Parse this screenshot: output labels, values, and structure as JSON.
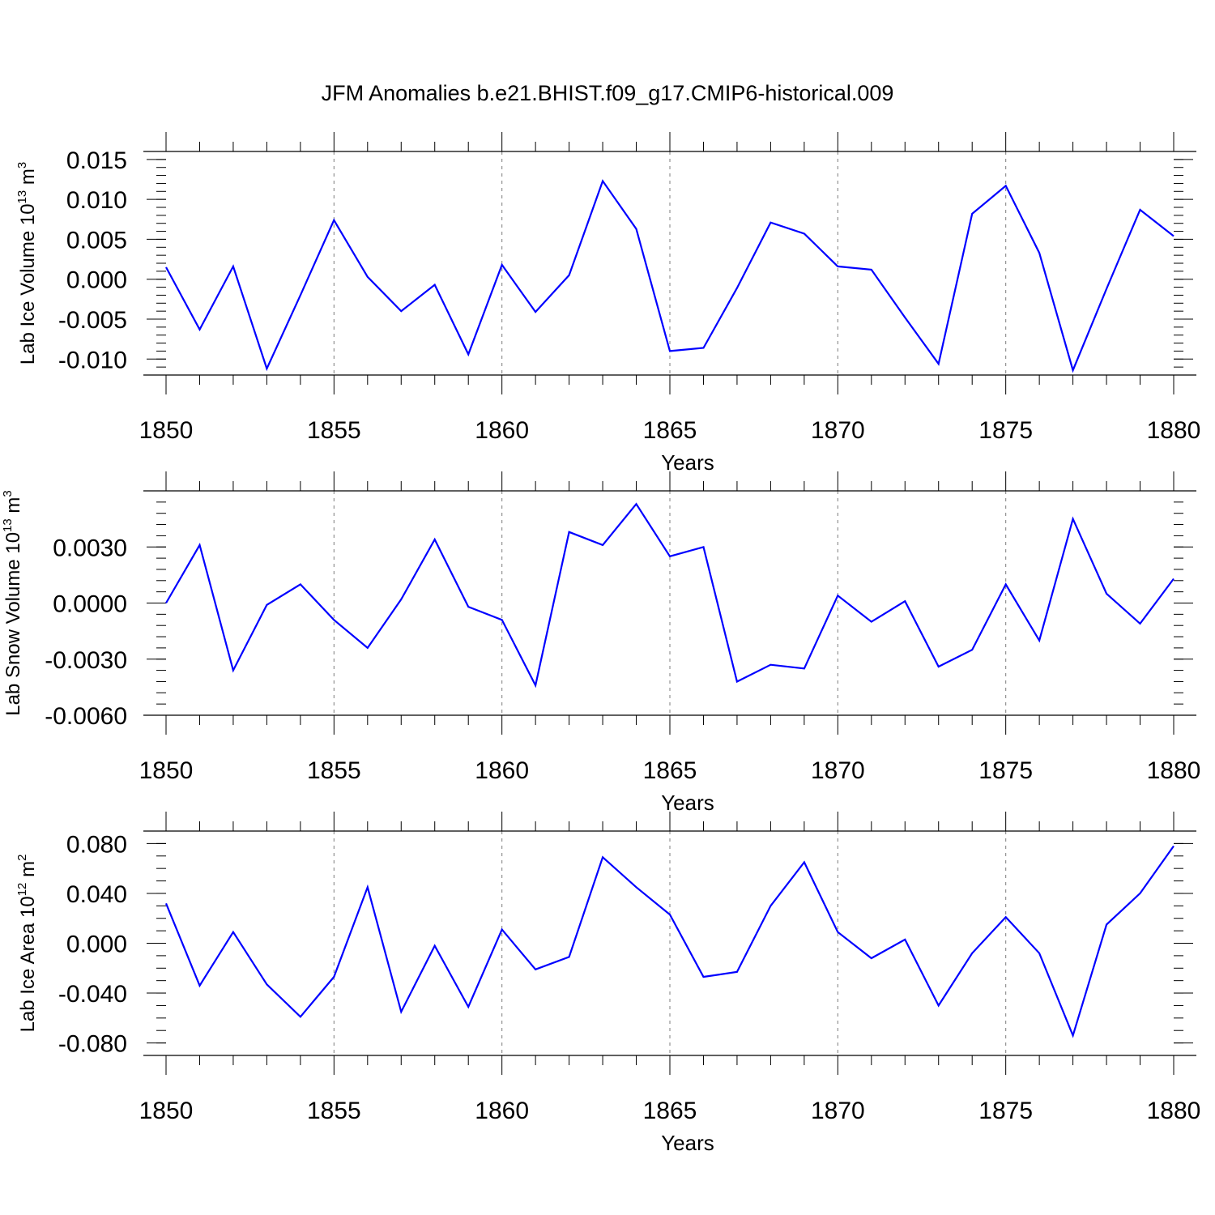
{
  "title": "JFM Anomalies b.e21.BHIST.f09_g17.CMIP6-historical.009",
  "colors": {
    "series": "#0000ff",
    "grid": "#888888",
    "axis": "#000000"
  },
  "chart_data": [
    {
      "type": "line",
      "ylabel": "Lab Ice Volume 10",
      "ylabel_sup1": "13",
      "ylabel_unit": " m",
      "ylabel_sup2": "3",
      "xlabel": "Years",
      "xlim": [
        1850,
        1880
      ],
      "ylim": [
        -0.012,
        0.016
      ],
      "xticks": [
        "1850",
        "1855",
        "1860",
        "1865",
        "1870",
        "1875",
        "1880"
      ],
      "yticks": [
        {
          "v": 0.015,
          "label": "0.015"
        },
        {
          "v": 0.01,
          "label": "0.010"
        },
        {
          "v": 0.005,
          "label": "0.005"
        },
        {
          "v": 0.0,
          "label": "0.000"
        },
        {
          "v": -0.005,
          "label": "-0.005"
        },
        {
          "v": -0.01,
          "label": "-0.010"
        }
      ],
      "yminor_step": 0.001,
      "grid": "vertical dashed at major x ticks",
      "x": [
        1850,
        1851,
        1852,
        1853,
        1854,
        1855,
        1856,
        1857,
        1858,
        1859,
        1860,
        1861,
        1862,
        1863,
        1864,
        1865,
        1866,
        1867,
        1868,
        1869,
        1870,
        1871,
        1872,
        1873,
        1874,
        1875,
        1876,
        1877,
        1878,
        1879,
        1880
      ],
      "y": [
        0.0015,
        -0.0063,
        0.0016,
        -0.0112,
        -0.002,
        0.0074,
        0.0003,
        -0.004,
        -0.0007,
        -0.0094,
        0.0018,
        -0.0041,
        0.0005,
        0.0123,
        0.0063,
        -0.009,
        -0.0086,
        -0.0011,
        0.0071,
        0.0057,
        0.0016,
        0.0012,
        -0.0048,
        -0.0106,
        0.0082,
        0.0117,
        0.0033,
        -0.0114,
        -0.0012,
        0.0087,
        0.0054
      ]
    },
    {
      "type": "line",
      "ylabel": "Lab Snow Volume 10",
      "ylabel_sup1": "13",
      "ylabel_unit": " m",
      "ylabel_sup2": "3",
      "xlabel": "Years",
      "xlim": [
        1850,
        1880
      ],
      "ylim": [
        -0.006,
        0.006
      ],
      "xticks": [
        "1850",
        "1855",
        "1860",
        "1865",
        "1870",
        "1875",
        "1880"
      ],
      "yticks": [
        {
          "v": 0.003,
          "label": "0.0030"
        },
        {
          "v": 0.0,
          "label": "0.0000"
        },
        {
          "v": -0.003,
          "label": "-0.0030"
        },
        {
          "v": -0.006,
          "label": "-0.0060"
        }
      ],
      "yminor_step": 0.0006,
      "grid": "vertical dashed at major x ticks",
      "x": [
        1850,
        1851,
        1852,
        1853,
        1854,
        1855,
        1856,
        1857,
        1858,
        1859,
        1860,
        1861,
        1862,
        1863,
        1864,
        1865,
        1866,
        1867,
        1868,
        1869,
        1870,
        1871,
        1872,
        1873,
        1874,
        1875,
        1876,
        1877,
        1878,
        1879,
        1880
      ],
      "y": [
        0.0,
        0.0031,
        -0.0036,
        -0.0001,
        0.001,
        -0.0009,
        -0.0024,
        0.0002,
        0.0034,
        -0.0002,
        -0.0009,
        -0.0044,
        0.0038,
        0.0031,
        0.0053,
        0.0025,
        0.003,
        -0.0042,
        -0.0033,
        -0.0035,
        0.0004,
        -0.001,
        0.0001,
        -0.0034,
        -0.0025,
        0.001,
        -0.002,
        0.0045,
        0.0005,
        -0.0011,
        0.0013
      ]
    },
    {
      "type": "line",
      "ylabel": "Lab Ice Area 10",
      "ylabel_sup1": "12",
      "ylabel_unit": " m",
      "ylabel_sup2": "2",
      "xlabel": "Years",
      "xlim": [
        1850,
        1880
      ],
      "ylim": [
        -0.09,
        0.09
      ],
      "xticks": [
        "1850",
        "1855",
        "1860",
        "1865",
        "1870",
        "1875",
        "1880"
      ],
      "yticks": [
        {
          "v": 0.08,
          "label": "0.080"
        },
        {
          "v": 0.04,
          "label": "0.040"
        },
        {
          "v": 0.0,
          "label": "0.000"
        },
        {
          "v": -0.04,
          "label": "-0.040"
        },
        {
          "v": -0.08,
          "label": "-0.080"
        }
      ],
      "yminor_step": 0.01,
      "grid": "vertical dashed at major x ticks",
      "x": [
        1850,
        1851,
        1852,
        1853,
        1854,
        1855,
        1856,
        1857,
        1858,
        1859,
        1860,
        1861,
        1862,
        1863,
        1864,
        1865,
        1866,
        1867,
        1868,
        1869,
        1870,
        1871,
        1872,
        1873,
        1874,
        1875,
        1876,
        1877,
        1878,
        1879,
        1880
      ],
      "y": [
        0.032,
        -0.034,
        0.009,
        -0.033,
        -0.059,
        -0.027,
        0.045,
        -0.055,
        -0.002,
        -0.051,
        0.011,
        -0.021,
        -0.011,
        0.069,
        0.045,
        0.023,
        -0.027,
        -0.023,
        0.03,
        0.065,
        0.009,
        -0.012,
        0.003,
        -0.05,
        -0.008,
        0.021,
        -0.008,
        -0.074,
        0.015,
        0.04,
        0.078
      ]
    }
  ]
}
